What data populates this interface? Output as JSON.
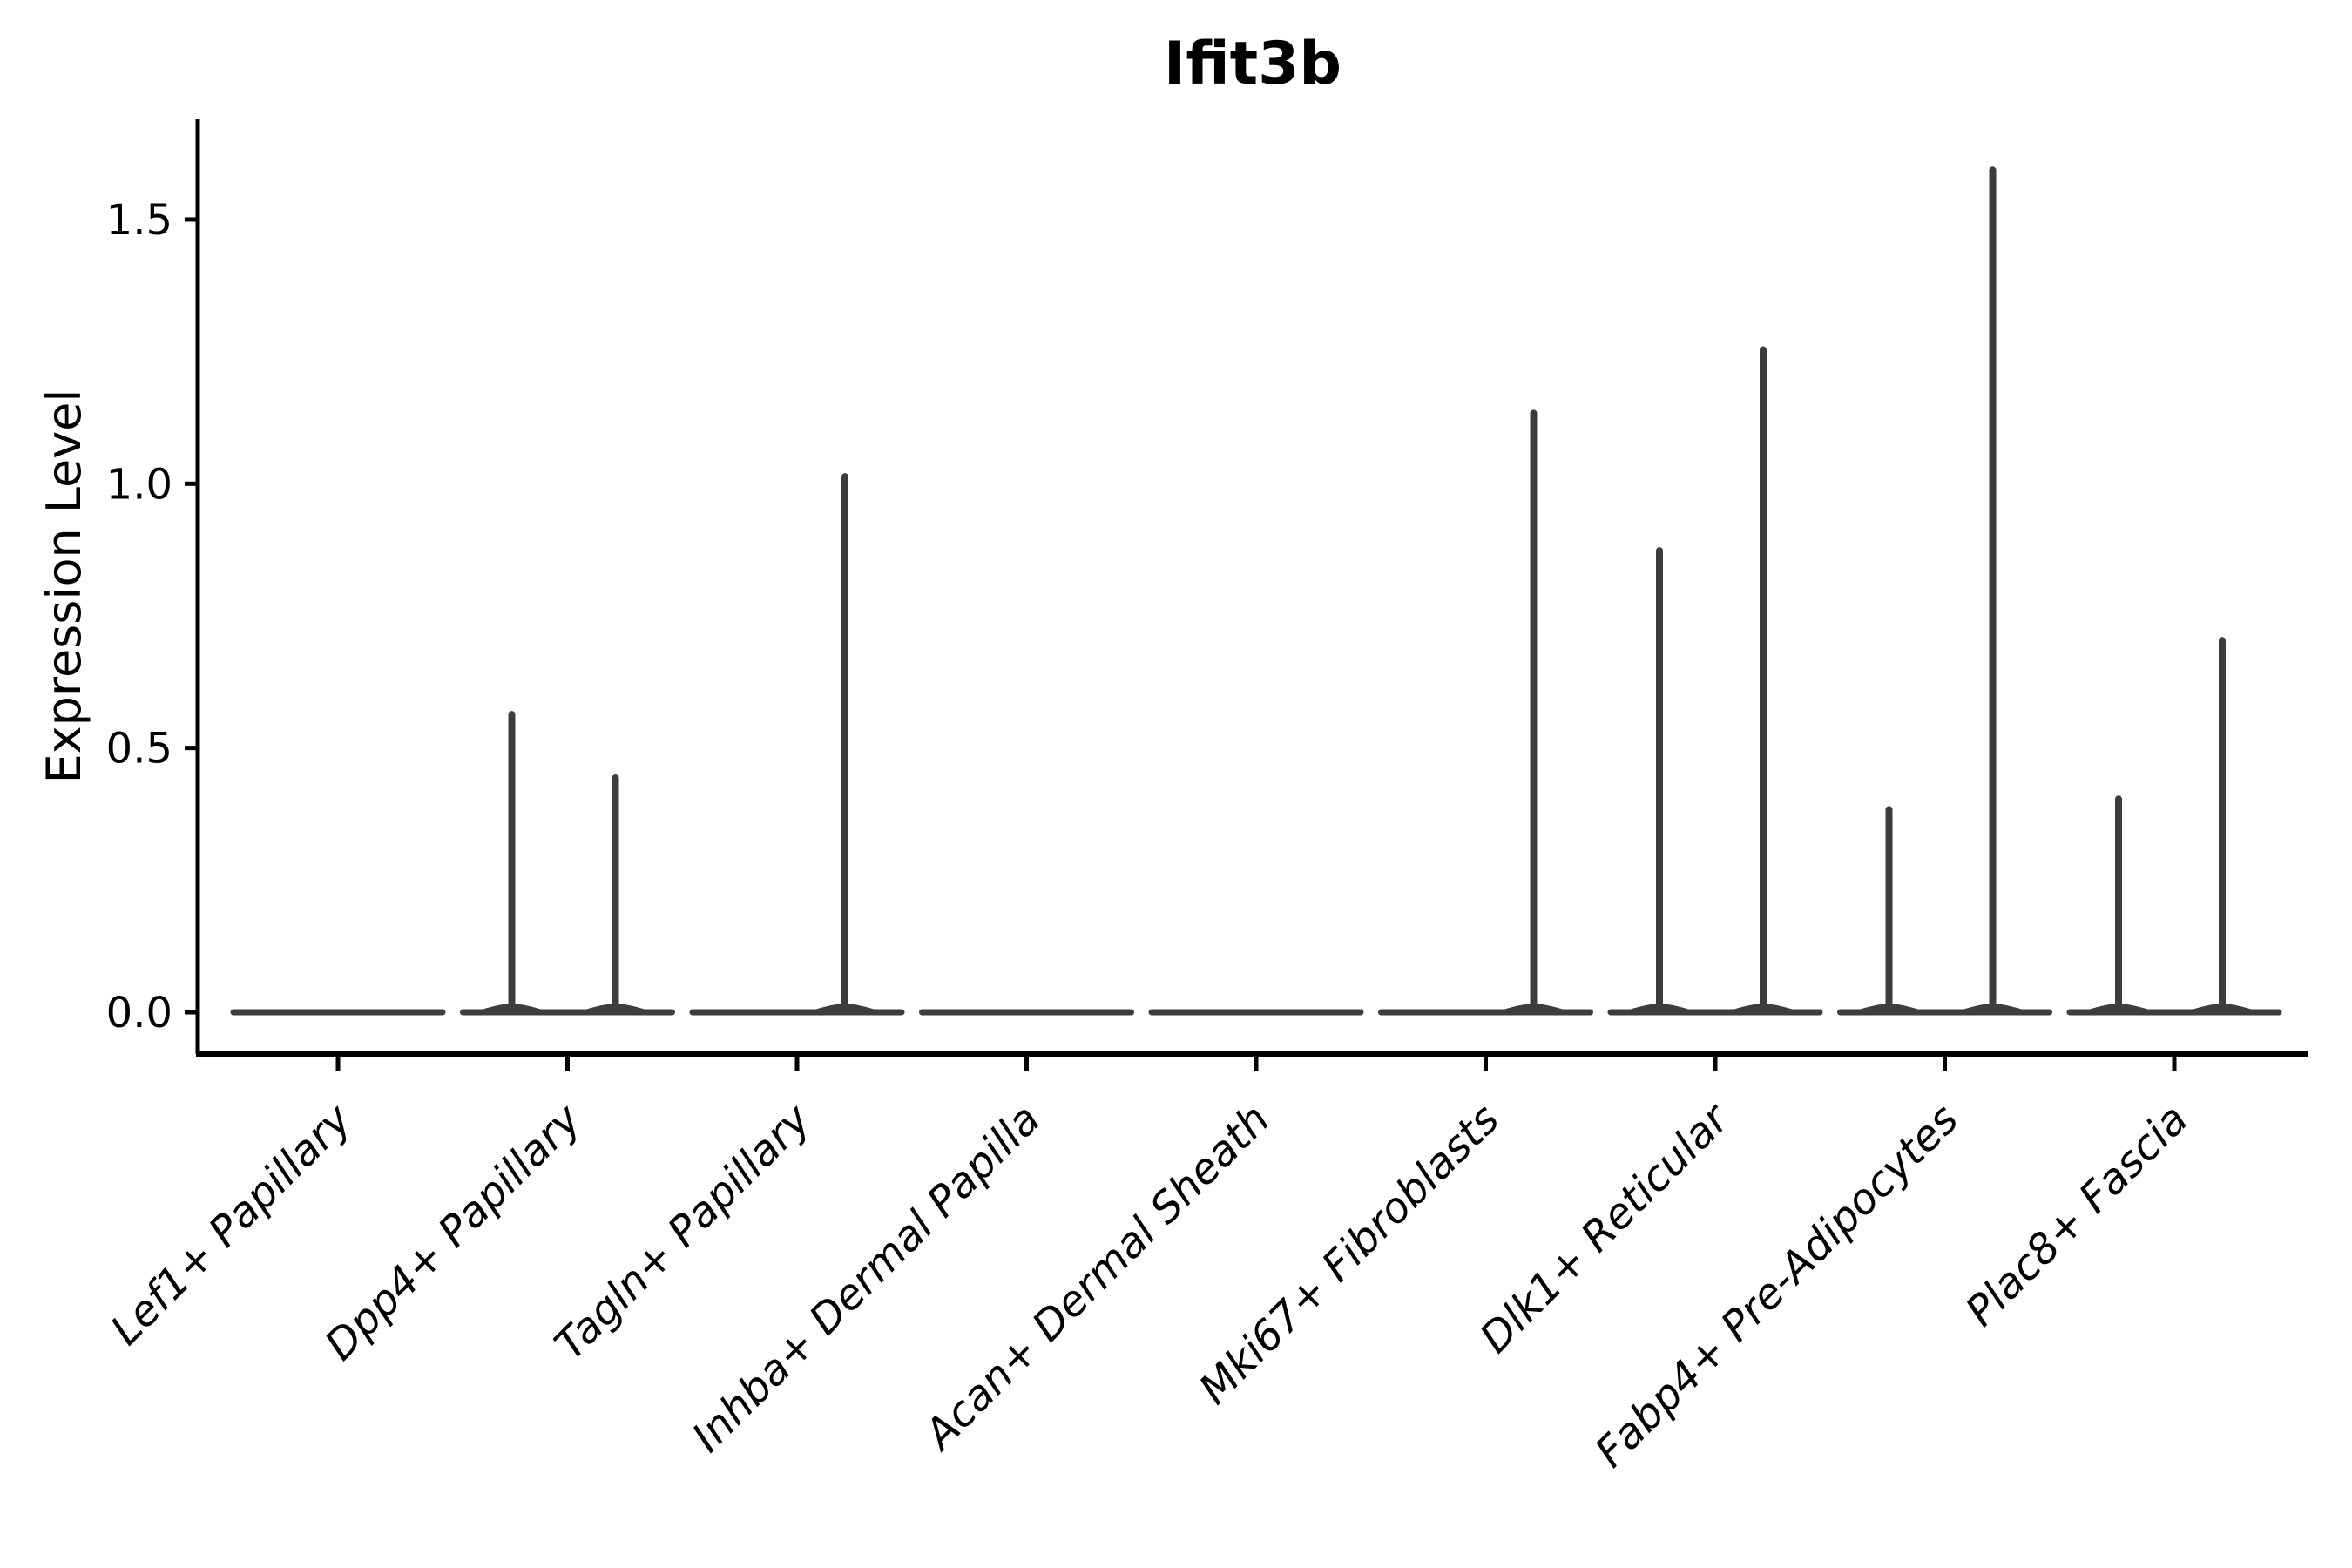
{
  "chart_data": {
    "type": "violin",
    "title": "Ifit3b",
    "ylabel": "Expression Level",
    "xlabel": "",
    "grid": false,
    "legend": "none",
    "ylim": [
      -0.08,
      1.69
    ],
    "yticks": [
      0.0,
      0.5,
      1.0,
      1.5
    ],
    "ytick_labels": [
      "0.0",
      "0.5",
      "1.0",
      "1.5"
    ],
    "categories": [
      "Lef1+ Papillary",
      "Dpp4+ Papillary",
      "Tagln+ Papillary",
      "Inhba+ Dermal Papilla",
      "Acan+ Dermal Sheath",
      "Mki67+ Fibroblasts",
      "Dlk1+ Reticular",
      "Fabp4+ Pre-Adipocytes",
      "Plac8+ Fascia"
    ],
    "violins": [
      {
        "category": "Lef1+ Papillary",
        "baseline": 0.0,
        "spikes": []
      },
      {
        "category": "Dpp4+ Papillary",
        "baseline": 0.0,
        "spikes": [
          {
            "side": "left",
            "max": 0.57
          },
          {
            "side": "right",
            "max": 0.45
          }
        ]
      },
      {
        "category": "Tagln+ Papillary",
        "baseline": 0.0,
        "spikes": [
          {
            "side": "right",
            "max": 1.02
          }
        ]
      },
      {
        "category": "Inhba+ Dermal Papilla",
        "baseline": 0.0,
        "spikes": []
      },
      {
        "category": "Acan+ Dermal Sheath",
        "baseline": 0.0,
        "spikes": []
      },
      {
        "category": "Mki67+ Fibroblasts",
        "baseline": 0.0,
        "spikes": [
          {
            "side": "right",
            "max": 1.14
          }
        ]
      },
      {
        "category": "Dlk1+ Reticular",
        "baseline": 0.0,
        "spikes": [
          {
            "side": "left",
            "max": 0.88
          },
          {
            "side": "right",
            "max": 1.26
          }
        ]
      },
      {
        "category": "Fabp4+ Pre-Adipocytes",
        "baseline": 0.0,
        "spikes": [
          {
            "side": "left",
            "max": 0.39
          },
          {
            "side": "right",
            "max": 1.6
          }
        ]
      },
      {
        "category": "Plac8+ Fascia",
        "baseline": 0.0,
        "spikes": [
          {
            "side": "left",
            "max": 0.41
          },
          {
            "side": "right",
            "max": 0.71
          }
        ]
      }
    ],
    "colors": {
      "violin": "#3d3d3d",
      "axis": "#000000",
      "background": "#ffffff"
    }
  }
}
